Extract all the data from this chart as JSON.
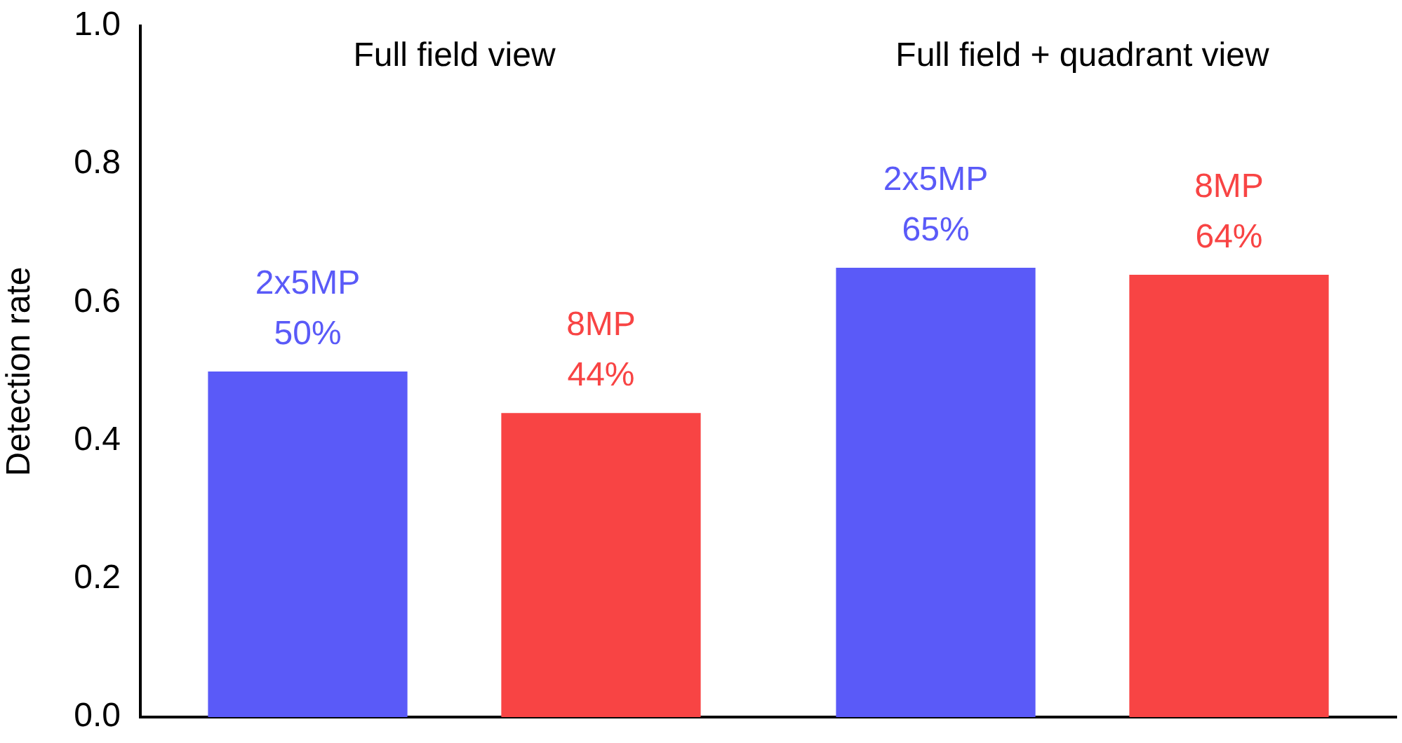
{
  "chart_data": {
    "type": "bar",
    "ylabel": "Detection rate",
    "categories": [
      "Full field view",
      "Full field + quadrant view"
    ],
    "series": [
      {
        "name": "2x5MP",
        "color": "#5a5af8",
        "values": [
          0.5,
          0.65
        ],
        "value_labels": [
          "50%",
          "65%"
        ]
      },
      {
        "name": "8MP",
        "color": "#f84444",
        "values": [
          0.44,
          0.64
        ],
        "value_labels": [
          "44%",
          "64%"
        ]
      }
    ],
    "ylim": [
      0,
      1
    ],
    "yticks": [
      {
        "value": 0,
        "label": "0.0"
      },
      0.2,
      0.4,
      0.6,
      0.8,
      {
        "value": 1,
        "label": "1.0"
      }
    ],
    "grid": false,
    "legend": false
  }
}
